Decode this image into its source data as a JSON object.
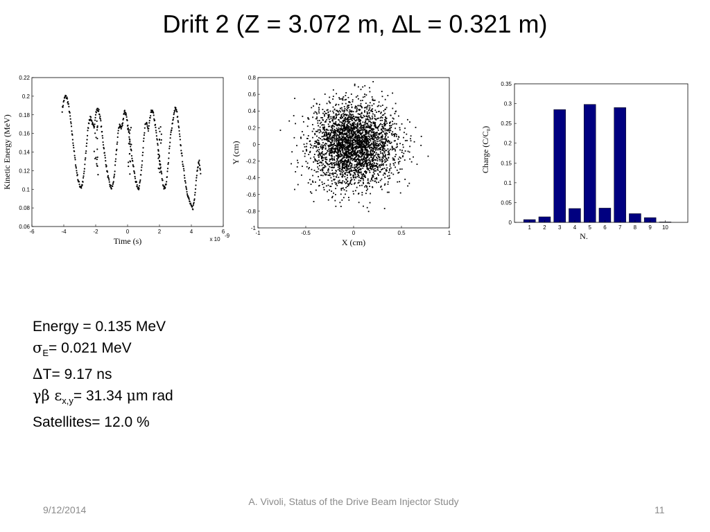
{
  "slide": {
    "title": "Drift 2 (Z = 3.072 m, ∆L = 0.321 m)",
    "footer_date": "9/12/2014",
    "footer_center": "A. Vivoli, Status of the Drive Beam Injector Study",
    "footer_page": "11"
  },
  "params": {
    "energy": "Energy = 0.135 MeV",
    "sigma_symbol": "σ",
    "sigma_sub": "E",
    "sigma_text": "= 0.021 MeV",
    "dt_symbol": "∆",
    "dt_text": "T= 9.17 ns",
    "emit_symbol": "γβ ε",
    "emit_sub": "x,y",
    "emit_text": "= 31.34 ",
    "emit_mu": "μ",
    "emit_unit": "m rad",
    "satellites": "Satellites= 12.0 %"
  },
  "chart_data": [
    {
      "type": "scatter",
      "xlabel": "Time  (s)",
      "ylabel": "Kinetic Energy  (MeV)",
      "x_multiplier": "x 10",
      "x_multiplier_exp": "-9",
      "xlim": [
        -6,
        6
      ],
      "ylim": [
        0.06,
        0.22
      ],
      "xticks": [
        "-6",
        "-4",
        "-2",
        "0",
        "2",
        "4",
        "6"
      ],
      "yticks": [
        "0.06",
        "0.08",
        "0.1",
        "0.12",
        "0.14",
        "0.16",
        "0.18",
        "0.2",
        "0.22"
      ],
      "x": [
        -4.1,
        -4.0,
        -3.9,
        -3.8,
        -3.7,
        -3.6,
        -3.5,
        -3.4,
        -3.3,
        -3.2,
        -3.1,
        -3.0,
        -2.9,
        -2.8,
        -2.7,
        -2.6,
        -2.5,
        -2.4,
        -2.3,
        -2.2,
        -2.1,
        -2.0,
        -1.9,
        -1.8,
        -1.7,
        -1.6,
        -1.5,
        -1.4,
        -1.3,
        -1.2,
        -1.1,
        -1.0,
        -0.9,
        -0.8,
        -0.7,
        -0.6,
        -0.5,
        -0.4,
        -0.3,
        -0.2,
        -0.1,
        0.0,
        0.1,
        0.2,
        0.3,
        0.4,
        0.5,
        0.6,
        0.7,
        0.8,
        0.9,
        1.0,
        1.1,
        1.2,
        1.3,
        1.4,
        1.5,
        1.6,
        1.7,
        1.8,
        1.9,
        2.0,
        2.1,
        2.2,
        2.3,
        2.4,
        2.5,
        2.6,
        2.7,
        2.8,
        2.9,
        3.0,
        3.1,
        3.2,
        3.3,
        3.4,
        3.5,
        3.6,
        3.7,
        3.8,
        3.9,
        4.0,
        4.1,
        4.2,
        4.3,
        4.4,
        4.5,
        4.6
      ],
      "y": [
        0.185,
        0.195,
        0.2,
        0.198,
        0.19,
        0.178,
        0.163,
        0.148,
        0.133,
        0.12,
        0.11,
        0.104,
        0.102,
        0.108,
        0.122,
        0.142,
        0.162,
        0.175,
        0.177,
        0.17,
        0.165,
        0.182,
        0.186,
        0.184,
        0.175,
        0.16,
        0.146,
        0.133,
        0.121,
        0.111,
        0.104,
        0.101,
        0.106,
        0.12,
        0.14,
        0.16,
        0.17,
        0.165,
        0.172,
        0.185,
        0.18,
        0.17,
        0.158,
        0.145,
        0.132,
        0.12,
        0.11,
        0.103,
        0.101,
        0.11,
        0.128,
        0.15,
        0.168,
        0.172,
        0.162,
        0.175,
        0.185,
        0.182,
        0.173,
        0.16,
        0.146,
        0.132,
        0.12,
        0.108,
        0.101,
        0.104,
        0.118,
        0.138,
        0.158,
        0.17,
        0.18,
        0.188,
        0.182,
        0.168,
        0.152,
        0.137,
        0.123,
        0.111,
        0.1,
        0.092,
        0.086,
        0.081,
        0.08,
        0.09,
        0.11,
        0.125,
        0.13,
        0.112
      ]
    },
    {
      "type": "scatter",
      "xlabel": "X  (cm)",
      "ylabel": "Y  (cm)",
      "xlim": [
        -1,
        1
      ],
      "ylim": [
        -1,
        0.8
      ],
      "xticks": [
        "-1",
        "-0.5",
        "0",
        "0.5",
        "1"
      ],
      "yticks": [
        "-1",
        "-0.8",
        "-0.6",
        "-0.4",
        "-0.2",
        "0",
        "0.2",
        "0.4",
        "0.6",
        "0.8"
      ],
      "distribution": "gaussian cloud centred at (0, 0)",
      "sigma_x": 0.22,
      "sigma_y": 0.24,
      "points": 3000
    },
    {
      "type": "bar",
      "xlabel": "N.",
      "ylabel": "Charge (C/C",
      "ylabel_sub": "0",
      "ylabel_end": ")",
      "categories": [
        "1",
        "2",
        "3",
        "4",
        "5",
        "6",
        "7",
        "8",
        "9",
        "10"
      ],
      "values": [
        0.007,
        0.014,
        0.285,
        0.035,
        0.298,
        0.036,
        0.29,
        0.022,
        0.012,
        0.001
      ],
      "ylim": [
        0,
        0.35
      ],
      "yticks": [
        "0",
        "0.05",
        "0.1",
        "0.15",
        "0.2",
        "0.25",
        "0.3",
        "0.35"
      ],
      "bar_color": "#000080"
    }
  ]
}
